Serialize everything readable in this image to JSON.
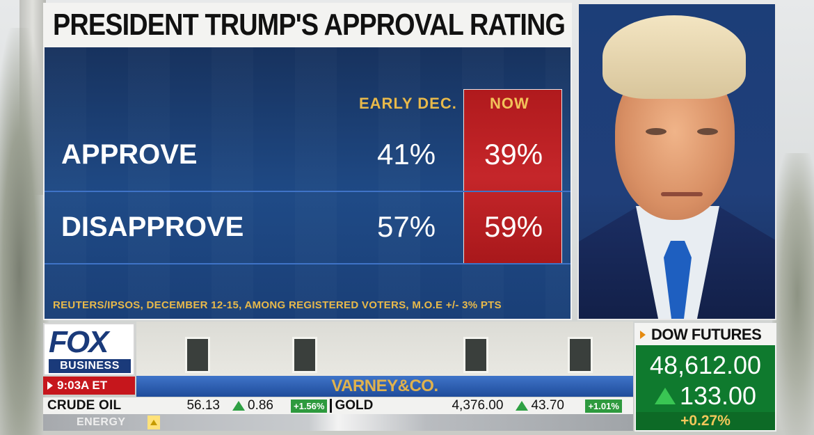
{
  "graphic": {
    "title": "PRESIDENT TRUMP'S APPROVAL RATING",
    "columns": {
      "early": "EARLY DEC.",
      "now": "NOW"
    },
    "rows": [
      {
        "label": "APPROVE",
        "early": "41%",
        "now": "39%"
      },
      {
        "label": "DISAPPROVE",
        "early": "57%",
        "now": "59%"
      }
    ],
    "source": "REUTERS/IPSOS, DECEMBER 12-15, AMONG REGISTERED VOTERS, M.O.E +/- 3% PTS",
    "colors": {
      "panel": "#1f4a86",
      "now_box": "#c5262a",
      "header_text": "#e8b94a"
    }
  },
  "network": {
    "logo_top": "FOX",
    "logo_bottom": "BUSINESS",
    "time": "9:03A ET",
    "show": "VARNEY&CO."
  },
  "ticker": {
    "item1": {
      "name": "CRUDE OIL",
      "price": "56.13",
      "change": "0.86",
      "pct": "+1.56%",
      "direction": "up"
    },
    "item2": {
      "name": "GOLD",
      "price": "4,376.00",
      "change": "43.70",
      "pct": "+1.01%",
      "direction": "up"
    },
    "sector": "ENERGY"
  },
  "dow": {
    "label": "DOW FUTURES",
    "price": "48,612.00",
    "change": "133.00",
    "pct": "+0.27%",
    "direction": "up"
  }
}
